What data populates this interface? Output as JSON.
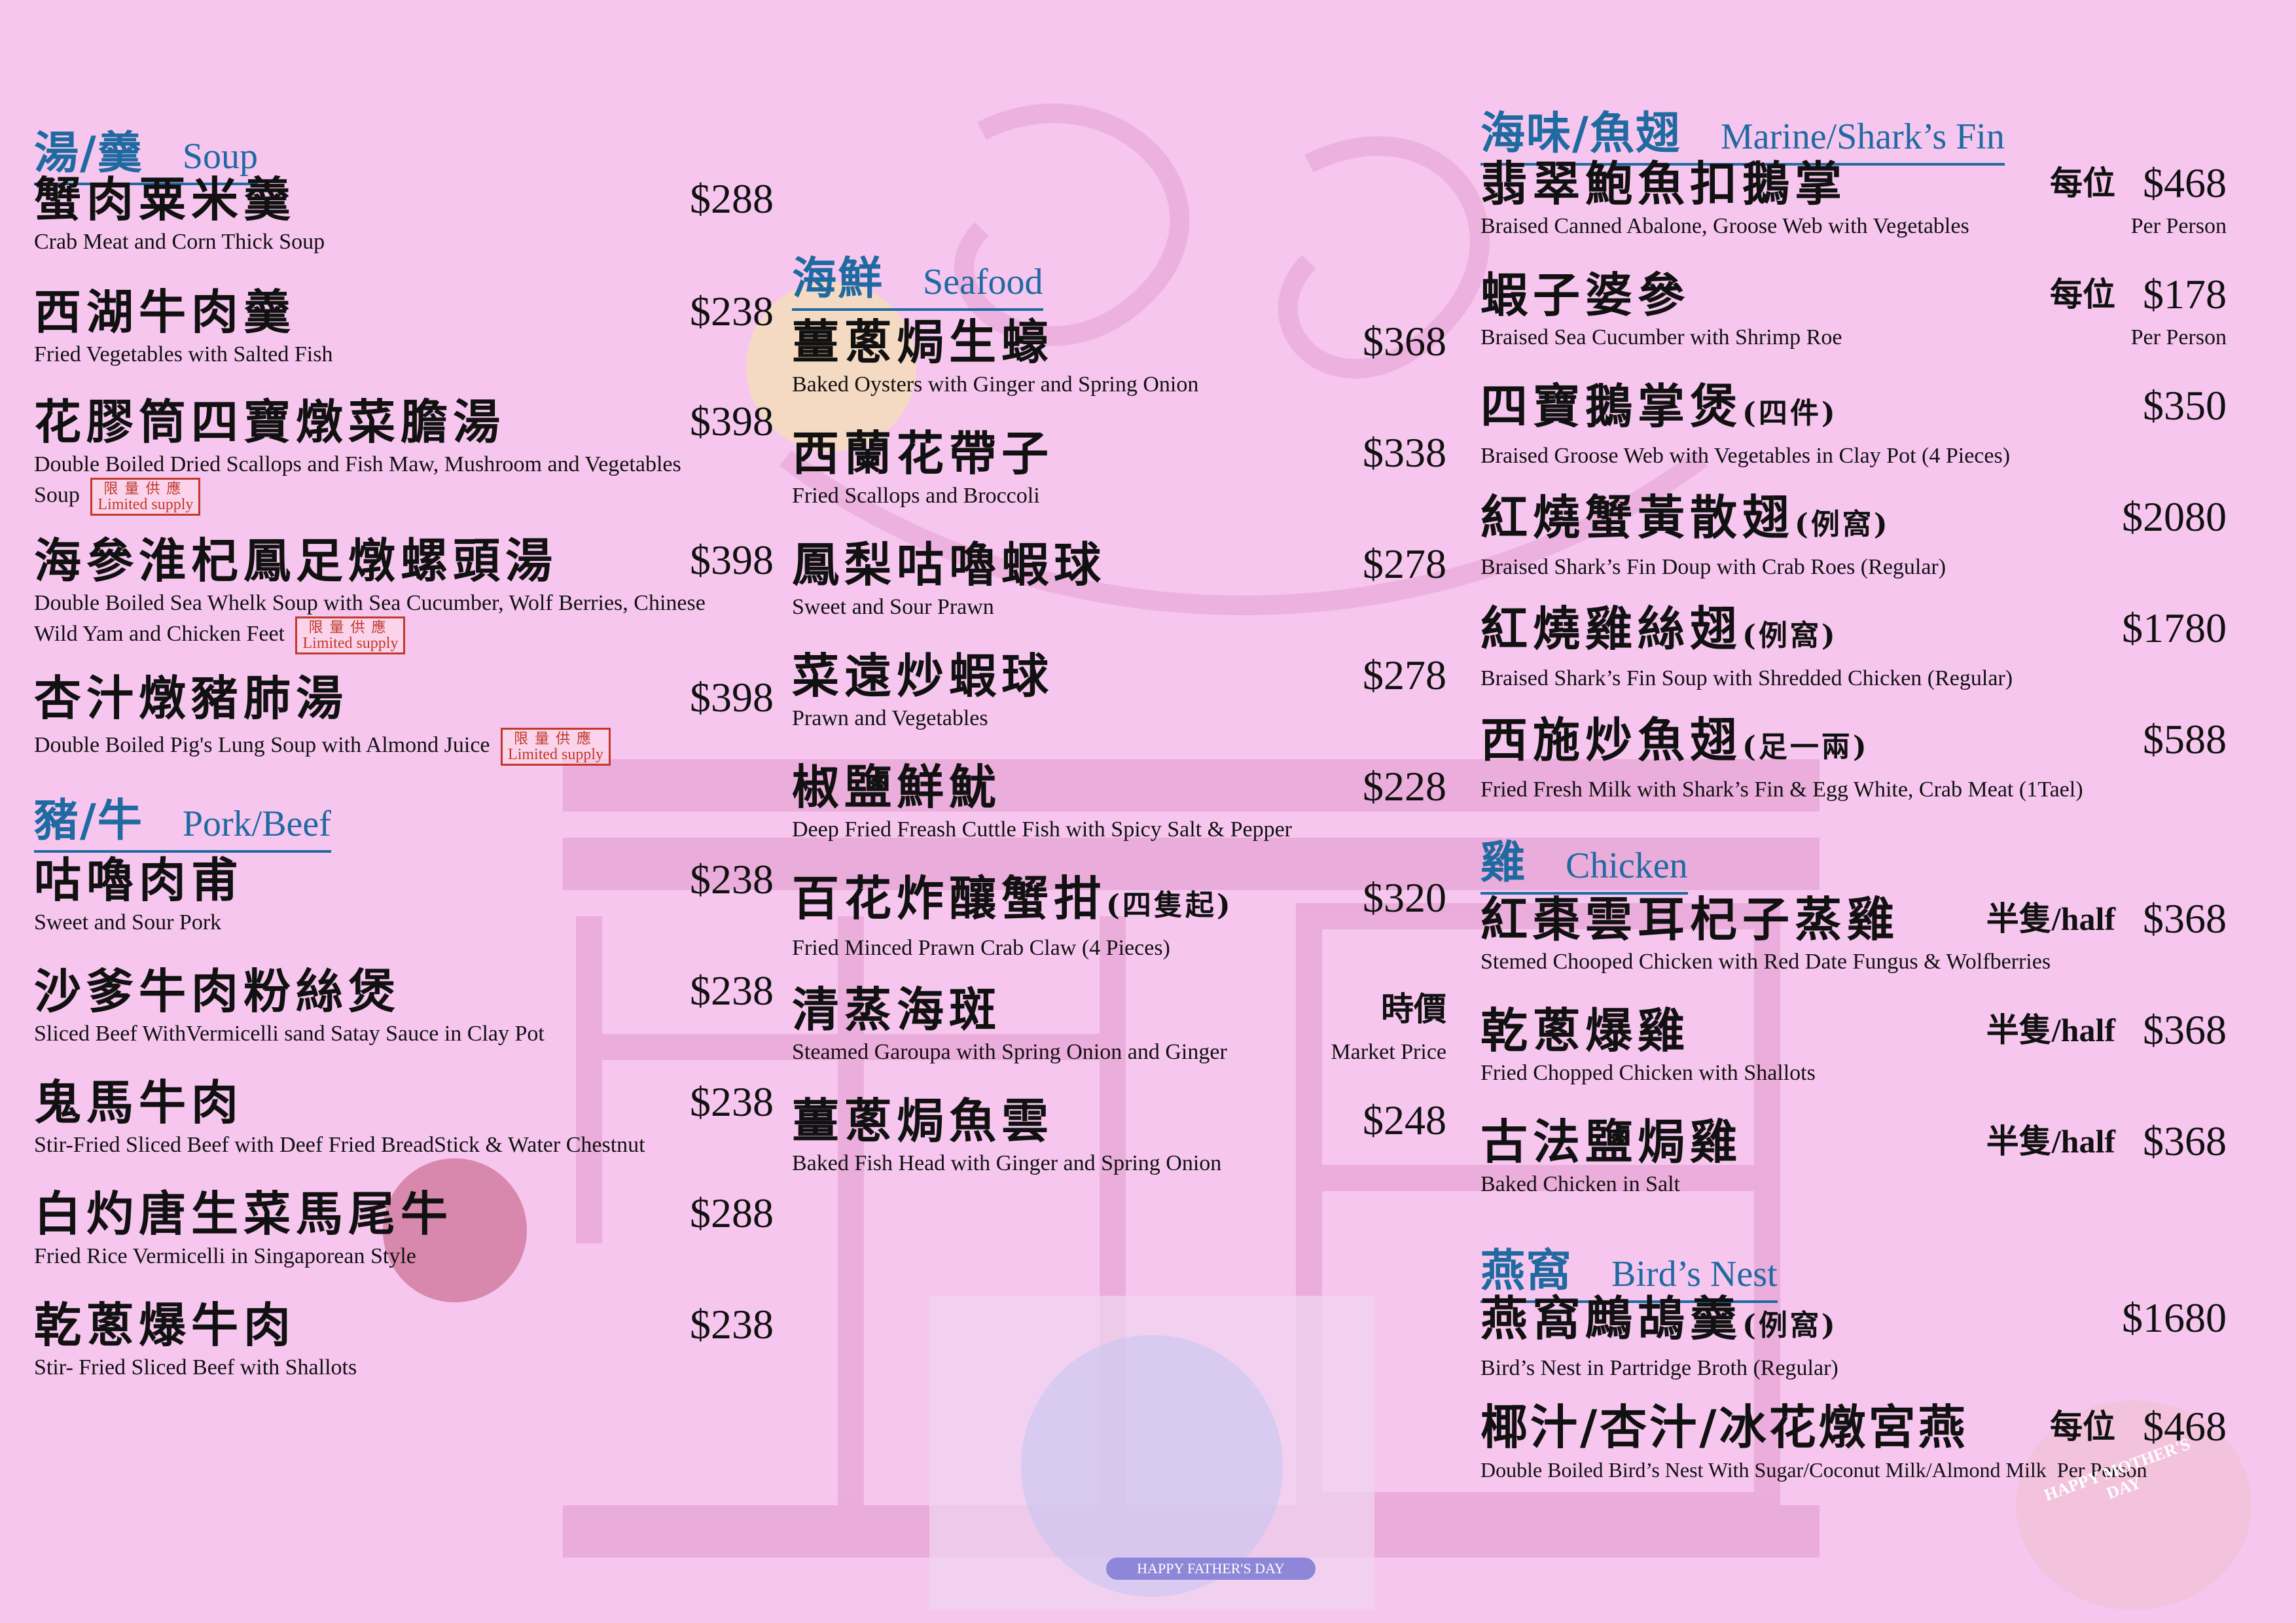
{
  "colors": {
    "background": "#f6c6ef",
    "heading": "#1f6aa0",
    "stamp": "#c0392b"
  },
  "stamp": {
    "zh": "限量供應",
    "en": "Limited supply"
  },
  "soup": {
    "title_zh": "湯/羹",
    "title_en": "Soup",
    "items": [
      {
        "zh": "蟹肉粟米羹",
        "en": "Crab Meat and Corn Thick Soup",
        "price": "$288"
      },
      {
        "zh": "西湖牛肉羹",
        "en": "Fried Vegetables with Salted Fish",
        "price": "$238"
      },
      {
        "zh": "花膠筒四寶燉菜膽湯",
        "en": "Double Boiled Dried Scallops and Fish Maw, Mushroom and Vegetables Soup",
        "price": "$398"
      },
      {
        "zh": "海參淮杞鳳足燉螺頭湯",
        "en": "Double Boiled Sea Whelk Soup with Sea Cucumber, Wolf Berries, Chinese Wild Yam and Chicken Feet",
        "price": "$398"
      },
      {
        "zh": "杏汁燉豬肺湯",
        "en": "Double Boiled Pig's Lung Soup with Almond Juice",
        "price": "$398"
      }
    ]
  },
  "pork": {
    "title_zh": "豬/牛",
    "title_en": "Pork/Beef",
    "items": [
      {
        "zh": "咕嚕肉甫",
        "en": "Sweet and Sour Pork",
        "price": "$238"
      },
      {
        "zh": "沙爹牛肉粉絲煲",
        "en": "Sliced Beef WithVermicelli sand Satay Sauce in Clay Pot",
        "price": "$238"
      },
      {
        "zh": "鬼馬牛肉",
        "en": "Stir-Fried Sliced Beef with Deef Fried BreadStick & Water Chestnut",
        "price": "$238"
      },
      {
        "zh": "白灼唐生菜馬尾牛",
        "en": "Fried Rice Vermicelli in Singaporean Style",
        "price": "$288"
      },
      {
        "zh": "乾蔥爆牛肉",
        "en": "Stir- Fried Sliced Beef with Shallots",
        "price": "$238"
      }
    ]
  },
  "seafood": {
    "title_zh": "海鮮",
    "title_en": "Seafood",
    "items": [
      {
        "zh": "薑蔥焗生蠔",
        "en": "Baked Oysters with Ginger and Spring Onion",
        "price": "$368"
      },
      {
        "zh": "西蘭花帶子",
        "en": "Fried Scallops and Broccoli",
        "price": "$338"
      },
      {
        "zh": "鳳梨咕嚕蝦球",
        "en": "Sweet and Sour Prawn",
        "price": "$278"
      },
      {
        "zh": "菜遠炒蝦球",
        "en": "Prawn and Vegetables",
        "price": "$278"
      },
      {
        "zh": "椒鹽鮮魷",
        "en": "Deep Fried Freash Cuttle Fish with Spicy Salt & Pepper",
        "price": "$228"
      },
      {
        "zh": "百花炸釀蟹拑",
        "note": "(四隻起)",
        "en": "Fried Minced Prawn Crab Claw (4 Pieces)",
        "price": "$320"
      },
      {
        "zh": "清蒸海斑",
        "en": "Steamed Garoupa with Spring Onion and Ginger",
        "price": "時價",
        "price_en": "Market Price"
      },
      {
        "zh": "薑蔥焗魚雲",
        "en": "Baked Fish Head with Ginger and Spring Onion",
        "price": "$248"
      }
    ]
  },
  "marine": {
    "title_zh": "海味/魚翅",
    "title_en": "Marine/Shark’s Fin",
    "items": [
      {
        "zh": "翡翠鮑魚扣鵝掌",
        "tag": "每位",
        "price": "$468",
        "en": "Braised Canned Abalone, Groose Web with Vegetables",
        "tag_en": "Per Person"
      },
      {
        "zh": "蝦子婆參",
        "tag": "每位",
        "price": "$178",
        "en": "Braised Sea Cucumber with Shrimp Roe",
        "tag_en": "Per Person"
      },
      {
        "zh": "四寶鵝掌煲",
        "note": "(四件)",
        "price": "$350",
        "en": "Braised Groose Web with Vegetables in Clay Pot (4 Pieces)"
      },
      {
        "zh": "紅燒蟹黃散翅",
        "note": "(例窩)",
        "price": "$2080",
        "en": "Braised Shark’s Fin Doup with Crab Roes (Regular)"
      },
      {
        "zh": "紅燒雞絲翅",
        "note": "(例窩)",
        "price": "$1780",
        "en": "Braised Shark’s Fin Soup with Shredded Chicken (Regular)"
      },
      {
        "zh": "西施炒魚翅",
        "note": "(足一兩)",
        "price": "$588",
        "en": "Fried Fresh Milk with Shark’s Fin & Egg White, Crab Meat (1Tael)"
      }
    ]
  },
  "chicken": {
    "title_zh": "雞",
    "title_en": "Chicken",
    "items": [
      {
        "zh": "紅棗雲耳杞子蒸雞",
        "tag": "半隻/half",
        "price": "$368",
        "en": "Stemed Chooped Chicken with Red Date Fungus & Wolfberries"
      },
      {
        "zh": "乾蔥爆雞",
        "tag": "半隻/half",
        "price": "$368",
        "en": "Fried Chopped Chicken with Shallots"
      },
      {
        "zh": "古法鹽焗雞",
        "tag": "半隻/half",
        "price": "$368",
        "en": "Baked Chicken in Salt"
      }
    ]
  },
  "nest": {
    "title_zh": "燕窩",
    "title_en": "Bird’s Nest",
    "items": [
      {
        "zh": "燕窩鷓鴣羹",
        "note": "(例窩)",
        "price": "$1680",
        "en": "Bird’s Nest in Partridge Broth  (Regular)"
      },
      {
        "zh": "椰汁/杏汁/冰花燉宮燕",
        "tag": "每位",
        "price": "$468",
        "en": "Double Boiled Bird’s Nest With Sugar/Coconut Milk/Almond Milk",
        "tag_en": "Per Person"
      }
    ]
  },
  "decor": {
    "fathers_day": "HAPPY FATHER'S DAY",
    "mothers_day": "HAPPY MOTHER'S DAY"
  }
}
